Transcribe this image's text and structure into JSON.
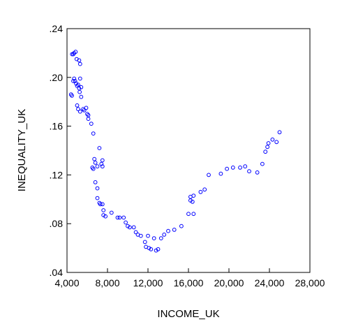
{
  "chart_data": {
    "type": "scatter",
    "title": "",
    "xlabel": "INCOME_UK",
    "ylabel": "INEQUALITY_UK",
    "xlim": [
      4000,
      28000
    ],
    "ylim": [
      0.04,
      0.24
    ],
    "x_ticks": [
      4000,
      8000,
      12000,
      16000,
      20000,
      24000,
      28000
    ],
    "x_tick_labels": [
      "4,000",
      "8,000",
      "12,000",
      "16,000",
      "20,000",
      "24,000",
      "28,000"
    ],
    "y_ticks": [
      0.04,
      0.08,
      0.12,
      0.16,
      0.2,
      0.24
    ],
    "y_tick_labels": [
      ".04",
      ".08",
      ".12",
      ".16",
      ".20",
      ".24"
    ],
    "grid": false,
    "legend": "none",
    "marker_color": "#0000ff",
    "series": [
      {
        "points": [
          [
            4400,
            0.186
          ],
          [
            4480,
            0.185
          ],
          [
            4500,
            0.219
          ],
          [
            4620,
            0.219
          ],
          [
            4700,
            0.22
          ],
          [
            4850,
            0.221
          ],
          [
            4950,
            0.215
          ],
          [
            5200,
            0.214
          ],
          [
            5300,
            0.211
          ],
          [
            4620,
            0.197
          ],
          [
            4700,
            0.199
          ],
          [
            4800,
            0.197
          ],
          [
            4900,
            0.195
          ],
          [
            5000,
            0.193
          ],
          [
            5100,
            0.194
          ],
          [
            5200,
            0.191
          ],
          [
            5250,
            0.188
          ],
          [
            5300,
            0.199
          ],
          [
            5400,
            0.192
          ],
          [
            5000,
            0.177
          ],
          [
            5100,
            0.174
          ],
          [
            5300,
            0.172
          ],
          [
            5400,
            0.184
          ],
          [
            5600,
            0.174
          ],
          [
            5700,
            0.173
          ],
          [
            5900,
            0.175
          ],
          [
            6000,
            0.17
          ],
          [
            6100,
            0.169
          ],
          [
            6100,
            0.166
          ],
          [
            6400,
            0.162
          ],
          [
            6600,
            0.154
          ],
          [
            6500,
            0.126
          ],
          [
            6700,
            0.133
          ],
          [
            6800,
            0.13
          ],
          [
            6600,
            0.125
          ],
          [
            7000,
            0.127
          ],
          [
            7200,
            0.142
          ],
          [
            7400,
            0.129
          ],
          [
            7500,
            0.132
          ],
          [
            7500,
            0.127
          ],
          [
            6800,
            0.114
          ],
          [
            7000,
            0.109
          ],
          [
            7000,
            0.101
          ],
          [
            7200,
            0.097
          ],
          [
            7300,
            0.096
          ],
          [
            7500,
            0.096
          ],
          [
            7600,
            0.091
          ],
          [
            7600,
            0.087
          ],
          [
            7800,
            0.086
          ],
          [
            8400,
            0.089
          ],
          [
            9000,
            0.085
          ],
          [
            9200,
            0.085
          ],
          [
            9600,
            0.085
          ],
          [
            9800,
            0.081
          ],
          [
            10000,
            0.078
          ],
          [
            10200,
            0.077
          ],
          [
            10600,
            0.077
          ],
          [
            10800,
            0.073
          ],
          [
            11000,
            0.071
          ],
          [
            11300,
            0.07
          ],
          [
            11700,
            0.065
          ],
          [
            11800,
            0.061
          ],
          [
            12000,
            0.07
          ],
          [
            12100,
            0.06
          ],
          [
            12300,
            0.059
          ],
          [
            12600,
            0.068
          ],
          [
            12800,
            0.058
          ],
          [
            13000,
            0.059
          ],
          [
            13300,
            0.068
          ],
          [
            13600,
            0.071
          ],
          [
            14000,
            0.074
          ],
          [
            14600,
            0.075
          ],
          [
            15300,
            0.078
          ],
          [
            16000,
            0.088
          ],
          [
            16200,
            0.099
          ],
          [
            16200,
            0.102
          ],
          [
            16400,
            0.098
          ],
          [
            16500,
            0.088
          ],
          [
            16500,
            0.103
          ],
          [
            17200,
            0.106
          ],
          [
            17600,
            0.108
          ],
          [
            18000,
            0.12
          ],
          [
            19200,
            0.121
          ],
          [
            19800,
            0.125
          ],
          [
            20400,
            0.126
          ],
          [
            21100,
            0.126
          ],
          [
            21600,
            0.127
          ],
          [
            22000,
            0.123
          ],
          [
            22800,
            0.122
          ],
          [
            23300,
            0.129
          ],
          [
            23600,
            0.139
          ],
          [
            23800,
            0.143
          ],
          [
            23900,
            0.146
          ],
          [
            24300,
            0.149
          ],
          [
            24700,
            0.147
          ],
          [
            25000,
            0.155
          ]
        ]
      }
    ]
  }
}
